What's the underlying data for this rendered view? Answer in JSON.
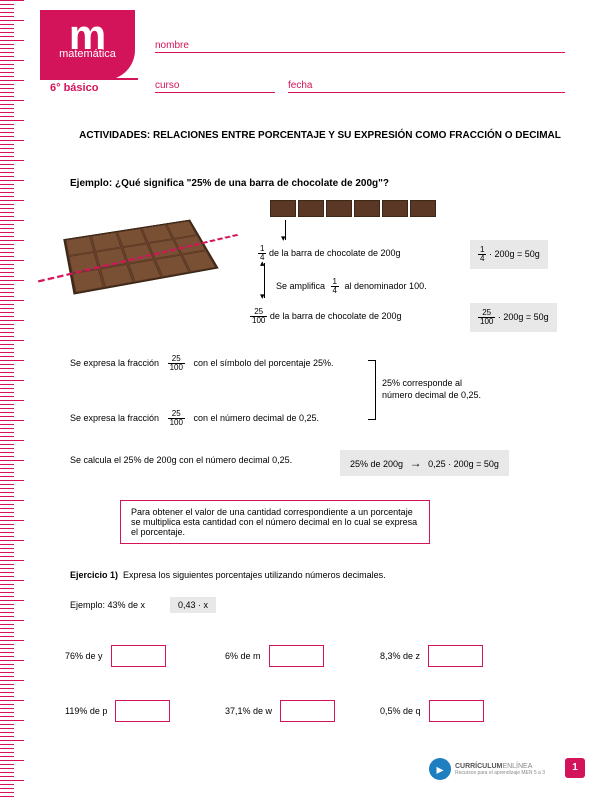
{
  "header": {
    "logo_letter": "m",
    "subject": "matemática",
    "grade": "6° básico"
  },
  "fields": {
    "name_label": "nombre",
    "course_label": "curso",
    "date_label": "fecha"
  },
  "title": "ACTIVIDADES: RELACIONES ENTRE PORCENTAJE Y SU EXPRESIÓN COMO FRACCIÓN O DECIMAL",
  "example_question": "Ejemplo: ¿Qué significa \"25% de una barra de chocolate de 200g\"?",
  "chocolate": {
    "strip_count": 6,
    "bar_color": "#5a3825",
    "line_color": "#d4145a"
  },
  "explanation": {
    "line1": "de la barra de chocolate de 200g",
    "frac1_num": "1",
    "frac1_den": "4",
    "calc1": "· 200g = 50g",
    "amplify": "Se amplifica",
    "amplify_suffix": "al denominador 100.",
    "frac2_num": "25",
    "frac2_den": "100",
    "line2": "de la barra de chocolate de 200g",
    "calc2": "· 200g = 50g",
    "express1_pre": "Se expresa la fracción",
    "express1_suf": "con el símbolo del porcentaje  25%.",
    "bracket_text1": "25% corresponde al",
    "bracket_text2": "número decimal de 0,25.",
    "express2_pre": "Se expresa la fracción",
    "express2_suf": "con el número decimal de 0,25.",
    "calc_line": "Se calcula el 25% de 200g con el número decimal 0,25.",
    "calc_box_1": "25% de 200g",
    "calc_box_2": "0,25 · 200g = 50g"
  },
  "note": "Para obtener el valor de una cantidad correspondiente a un porcentaje se multiplica esta cantidad con el número decimal en lo cual se expresa el porcentaje.",
  "exercise": {
    "title_prefix": "Ejercicio 1)",
    "title_text": "Expresa los siguientes porcentajes utilizando números decimales.",
    "example_label": "Ejemplo: 43% de x",
    "example_value": "0,43 · x",
    "items": [
      {
        "label": "76% de y"
      },
      {
        "label": "6% de m"
      },
      {
        "label": "8,3% de z"
      },
      {
        "label": "119% de p"
      },
      {
        "label": "37,1% de w"
      },
      {
        "label": "0,5% de q"
      }
    ]
  },
  "footer": {
    "brand_bold": "CURRÍCULUM",
    "brand_light": "ENLÍNEA",
    "subtitle": "Recursos para el aprendizaje MEN 5 a 3",
    "page": "1"
  },
  "colors": {
    "brand": "#d4145a",
    "gray_bg": "#e8e8e8",
    "footer_blue": "#1e7fc0"
  }
}
